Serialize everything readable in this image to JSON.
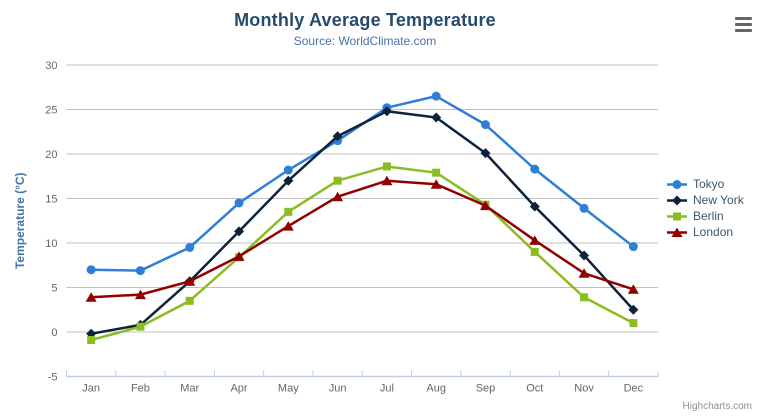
{
  "title": "Monthly Average Temperature",
  "subtitle": "Source: WorldClimate.com",
  "credits": "Highcharts.com",
  "export_menu_icon": "hamburger-icon",
  "colors": {
    "title": "#274b6d",
    "subtitle": "#4572a7",
    "axis_title": "#4572a7",
    "tick_label": "#666666",
    "grid": "#c0c0c0",
    "axis_line": "#c0d0e0",
    "legend_text": "#3e576f",
    "credits": "#909090"
  },
  "chart_data": {
    "type": "line",
    "title": "Monthly Average Temperature",
    "subtitle": "Source: WorldClimate.com",
    "xlabel": "",
    "ylabel": "Temperature (°C)",
    "ylim": [
      -5,
      30
    ],
    "ytick_step": 5,
    "yticks": [
      -5,
      0,
      5,
      10,
      15,
      20,
      25,
      30
    ],
    "grid": true,
    "legend_position": "right",
    "categories": [
      "Jan",
      "Feb",
      "Mar",
      "Apr",
      "May",
      "Jun",
      "Jul",
      "Aug",
      "Sep",
      "Oct",
      "Nov",
      "Dec"
    ],
    "series": [
      {
        "name": "Tokyo",
        "color": "#2f7ed8",
        "marker": "circle",
        "values": [
          7.0,
          6.9,
          9.5,
          14.5,
          18.2,
          21.5,
          25.2,
          26.5,
          23.3,
          18.3,
          13.9,
          9.6
        ]
      },
      {
        "name": "New York",
        "color": "#0d233a",
        "marker": "diamond",
        "values": [
          -0.2,
          0.8,
          5.7,
          11.3,
          17.0,
          22.0,
          24.8,
          24.1,
          20.1,
          14.1,
          8.6,
          2.5
        ]
      },
      {
        "name": "Berlin",
        "color": "#8bbc21",
        "marker": "square",
        "values": [
          -0.9,
          0.6,
          3.5,
          8.4,
          13.5,
          17.0,
          18.6,
          17.9,
          14.3,
          9.0,
          3.9,
          1.0
        ]
      },
      {
        "name": "London",
        "color": "#910000",
        "marker": "triangle",
        "values": [
          3.9,
          4.2,
          5.7,
          8.5,
          11.9,
          15.2,
          17.0,
          16.6,
          14.2,
          10.3,
          6.6,
          4.8
        ]
      }
    ]
  }
}
